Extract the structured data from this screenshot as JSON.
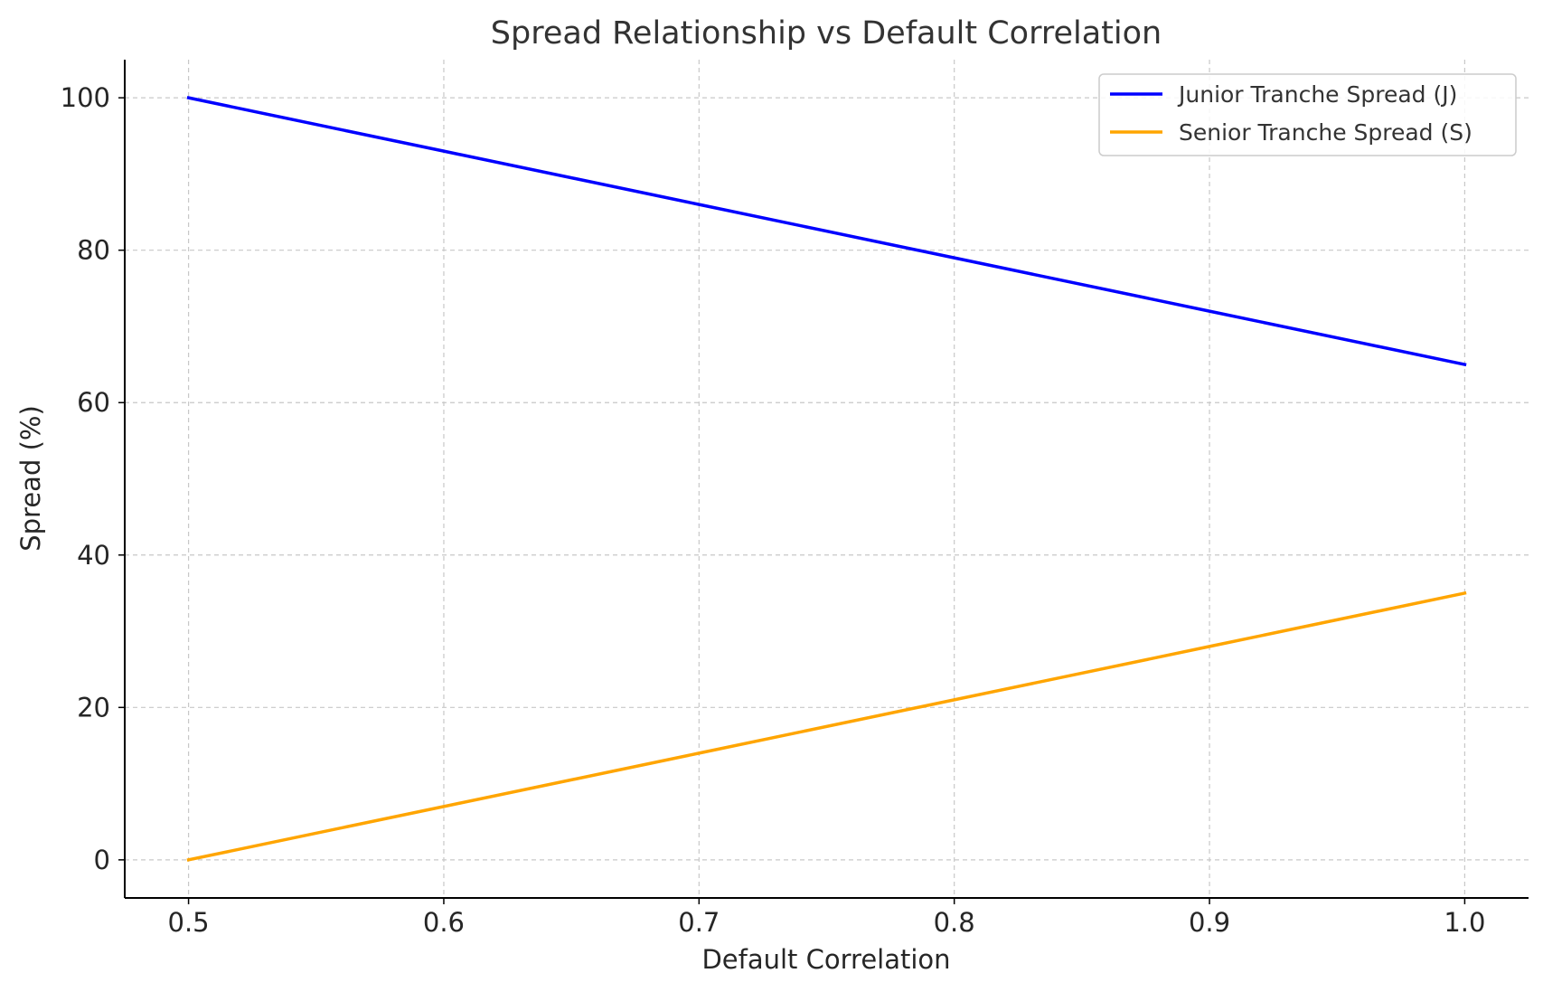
{
  "chart_data": {
    "type": "line",
    "title": "Spread Relationship vs Default Correlation",
    "xlabel": "Default Correlation",
    "ylabel": "Spread (%)",
    "x": [
      0.5,
      0.6,
      0.7,
      0.8,
      0.9,
      1.0
    ],
    "xlim": [
      0.475,
      1.025
    ],
    "ylim": [
      -5,
      105
    ],
    "x_ticks": [
      0.5,
      0.6,
      0.7,
      0.8,
      0.9,
      1.0
    ],
    "x_tick_labels": [
      "0.5",
      "0.6",
      "0.7",
      "0.8",
      "0.9",
      "1.0"
    ],
    "y_ticks": [
      0,
      20,
      40,
      60,
      80,
      100
    ],
    "y_tick_labels": [
      "0",
      "20",
      "40",
      "60",
      "80",
      "100"
    ],
    "grid": true,
    "legend_position": "top-right",
    "series": [
      {
        "name": "Junior Tranche Spread (J)",
        "color": "#0000ff",
        "values": [
          100,
          93,
          86,
          79,
          72,
          65
        ]
      },
      {
        "name": "Senior Tranche Spread (S)",
        "color": "#ffa500",
        "values": [
          0,
          7,
          14,
          21,
          28,
          35
        ]
      }
    ]
  }
}
